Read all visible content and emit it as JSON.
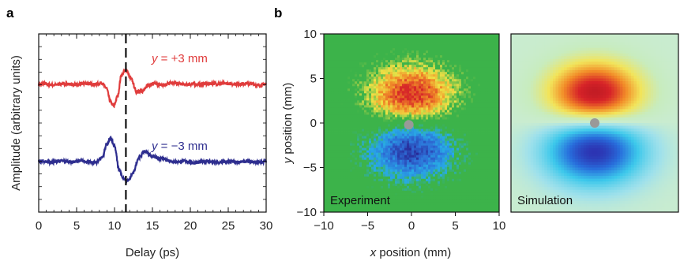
{
  "panels": {
    "a_letter": "a",
    "b_letter": "b"
  },
  "chart_data": [
    {
      "type": "line",
      "xlabel": "Delay (ps)",
      "ylabel": "Amplitude (arbitrary units)",
      "xlim": [
        0,
        30
      ],
      "xticks": [
        "0",
        "5",
        "10",
        "15",
        "20",
        "25",
        "30"
      ],
      "marker_x": 11.5,
      "series": [
        {
          "name": "y = +3 mm",
          "label_var": "y",
          "label_rest": " = +3 mm",
          "color": "#e03c3c",
          "baseline": 3.0,
          "points": [
            [
              0,
              3.0
            ],
            [
              2,
              3.0
            ],
            [
              4,
              3.02
            ],
            [
              6,
              3.02
            ],
            [
              7.5,
              3.05
            ],
            [
              8.3,
              3.12
            ],
            [
              8.9,
              2.7
            ],
            [
              9.5,
              1.6
            ],
            [
              9.9,
              1.35
            ],
            [
              10.4,
              2.1
            ],
            [
              10.9,
              3.7
            ],
            [
              11.5,
              4.1
            ],
            [
              12.2,
              3.4
            ],
            [
              12.9,
              2.5
            ],
            [
              13.6,
              2.45
            ],
            [
              14.3,
              2.85
            ],
            [
              15.3,
              3.08
            ],
            [
              16.5,
              2.95
            ],
            [
              17.5,
              3.12
            ],
            [
              18.5,
              3.1
            ],
            [
              19.5,
              2.95
            ],
            [
              21,
              3.05
            ],
            [
              22.5,
              3.02
            ],
            [
              24,
              3.1
            ],
            [
              25.5,
              3.0
            ],
            [
              27,
              3.1
            ],
            [
              28,
              3.02
            ],
            [
              29,
              2.95
            ],
            [
              30,
              3.05
            ]
          ]
        },
        {
          "name": "y = −3 mm",
          "label_var": "y",
          "label_rest": " = −3 mm",
          "color": "#2e2e8f",
          "baseline": -3.0,
          "points": [
            [
              0,
              -3.0
            ],
            [
              2,
              -3.0
            ],
            [
              4,
              -2.98
            ],
            [
              6,
              -3.0
            ],
            [
              7.5,
              -3.05
            ],
            [
              8.4,
              -2.7
            ],
            [
              9.0,
              -1.6
            ],
            [
              9.5,
              -1.2
            ],
            [
              10.0,
              -1.8
            ],
            [
              10.6,
              -3.6
            ],
            [
              11.2,
              -4.4
            ],
            [
              11.8,
              -4.5
            ],
            [
              12.4,
              -3.9
            ],
            [
              13.2,
              -2.7
            ],
            [
              14.0,
              -2.25
            ],
            [
              15.0,
              -2.55
            ],
            [
              16.0,
              -2.8
            ],
            [
              17.5,
              -2.95
            ],
            [
              19,
              -3.0
            ],
            [
              20.5,
              -3.08
            ],
            [
              22,
              -3.0
            ],
            [
              24,
              -3.05
            ],
            [
              26,
              -3.0
            ],
            [
              28,
              -3.05
            ],
            [
              30,
              -3.0
            ]
          ]
        }
      ]
    },
    {
      "type": "heatmap",
      "title": "Experiment",
      "xlabel_var": "x",
      "xlabel_rest": " position (mm)",
      "ylabel_var": "y",
      "ylabel_rest": " position (mm)",
      "xlim": [
        -10,
        10
      ],
      "ylim": [
        -10,
        10
      ],
      "xticks": [
        "−10",
        "−5",
        "0",
        "5",
        "10"
      ],
      "yticks": [
        "10",
        "5",
        "0",
        "−5",
        "−10"
      ],
      "positive_lobe": {
        "x": 0,
        "y": 3.2,
        "amplitude": 1.0
      },
      "negative_lobe": {
        "x": 0,
        "y": -3.0,
        "amplitude": -0.9
      },
      "center_marker": [
        -0.3,
        -0.2
      ],
      "background_color": "#3cb34a"
    },
    {
      "type": "heatmap",
      "title": "Simulation",
      "positive_lobe": {
        "x": 0,
        "y": 3.2,
        "amplitude": 1.0
      },
      "negative_lobe": {
        "x": 0,
        "y": -3.0,
        "amplitude": -1.0
      },
      "center_marker": [
        0,
        0
      ],
      "background_color": "#c9ecd0"
    }
  ]
}
